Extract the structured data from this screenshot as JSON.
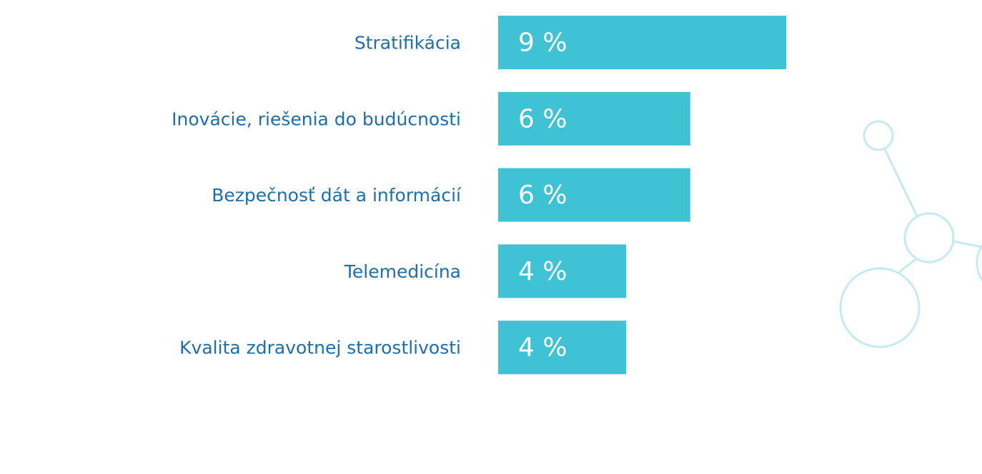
{
  "chart_data": {
    "type": "bar",
    "orientation": "horizontal",
    "categories": [
      "Stratifikácia",
      "Inovácie, riešenia do budúcnosti",
      "Bezpečnosť dát a informácií",
      "Telemedicína",
      "Kvalita zdravotnej starostlivosti"
    ],
    "values": [
      9,
      6,
      6,
      4,
      4
    ],
    "value_labels": [
      "9 %",
      "6 %",
      "6 %",
      "4 %",
      "4 %"
    ],
    "color": "#3ec2d4"
  }
}
